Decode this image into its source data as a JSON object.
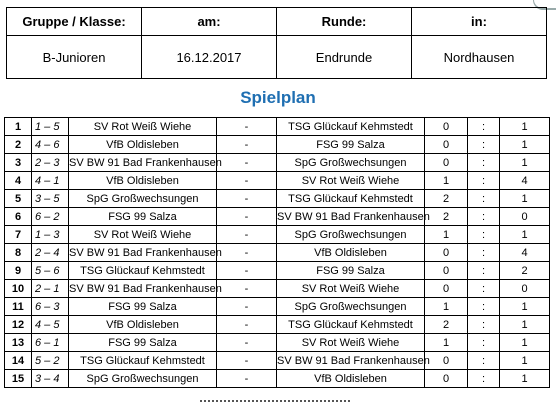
{
  "header": {
    "cols": [
      "Gruppe / Klasse:",
      "am:",
      "Runde:",
      "in:"
    ],
    "values": [
      "B-Junioren",
      "16.12.2017",
      "Endrunde",
      "Nordhausen"
    ]
  },
  "title": "Spielplan",
  "sep": "-",
  "colon": ":",
  "matches": [
    {
      "nr": "1",
      "pair": "1 – 5",
      "home": "SV Rot Weiß Wiehe",
      "away": "TSG Glückauf Kehmstedt",
      "h": "0",
      "a": "1"
    },
    {
      "nr": "2",
      "pair": "4 – 6",
      "home": "VfB Oldisleben",
      "away": "FSG 99 Salza",
      "h": "0",
      "a": "1"
    },
    {
      "nr": "3",
      "pair": "2 – 3",
      "home": "SV BW 91 Bad Frankenhausen",
      "away": "SpG Großwechsungen",
      "h": "0",
      "a": "1"
    },
    {
      "nr": "4",
      "pair": "4 – 1",
      "home": "VfB Oldisleben",
      "away": "SV Rot Weiß Wiehe",
      "h": "1",
      "a": "4"
    },
    {
      "nr": "5",
      "pair": "3 – 5",
      "home": "SpG Großwechsungen",
      "away": "TSG Glückauf Kehmstedt",
      "h": "2",
      "a": "1"
    },
    {
      "nr": "6",
      "pair": "6 – 2",
      "home": "FSG 99 Salza",
      "away": "SV BW 91 Bad Frankenhausen",
      "h": "2",
      "a": "0"
    },
    {
      "nr": "7",
      "pair": "1 – 3",
      "home": "SV Rot Weiß Wiehe",
      "away": "SpG Großwechsungen",
      "h": "1",
      "a": "1"
    },
    {
      "nr": "8",
      "pair": "2 – 4",
      "home": "SV BW 91 Bad Frankenhausen",
      "away": "VfB Oldisleben",
      "h": "0",
      "a": "4"
    },
    {
      "nr": "9",
      "pair": "5 – 6",
      "home": "TSG Glückauf Kehmstedt",
      "away": "FSG 99 Salza",
      "h": "0",
      "a": "2"
    },
    {
      "nr": "10",
      "pair": "2 – 1",
      "home": "SV BW 91 Bad Frankenhausen",
      "away": "SV Rot Weiß Wiehe",
      "h": "0",
      "a": "0"
    },
    {
      "nr": "11",
      "pair": "6 – 3",
      "home": "FSG 99 Salza",
      "away": "SpG Großwechsungen",
      "h": "1",
      "a": "1"
    },
    {
      "nr": "12",
      "pair": "4 – 5",
      "home": "VfB Oldisleben",
      "away": "TSG Glückauf Kehmstedt",
      "h": "2",
      "a": "1"
    },
    {
      "nr": "13",
      "pair": "6 – 1",
      "home": "FSG 99 Salza",
      "away": "SV Rot Weiß Wiehe",
      "h": "1",
      "a": "1"
    },
    {
      "nr": "14",
      "pair": "5 – 2",
      "home": "TSG Glückauf Kehmstedt",
      "away": "SV BW 91 Bad Frankenhausen",
      "h": "0",
      "a": "1"
    },
    {
      "nr": "15",
      "pair": "3 – 4",
      "home": "SpG Großwechsungen",
      "away": "VfB Oldisleben",
      "h": "0",
      "a": "1"
    }
  ]
}
